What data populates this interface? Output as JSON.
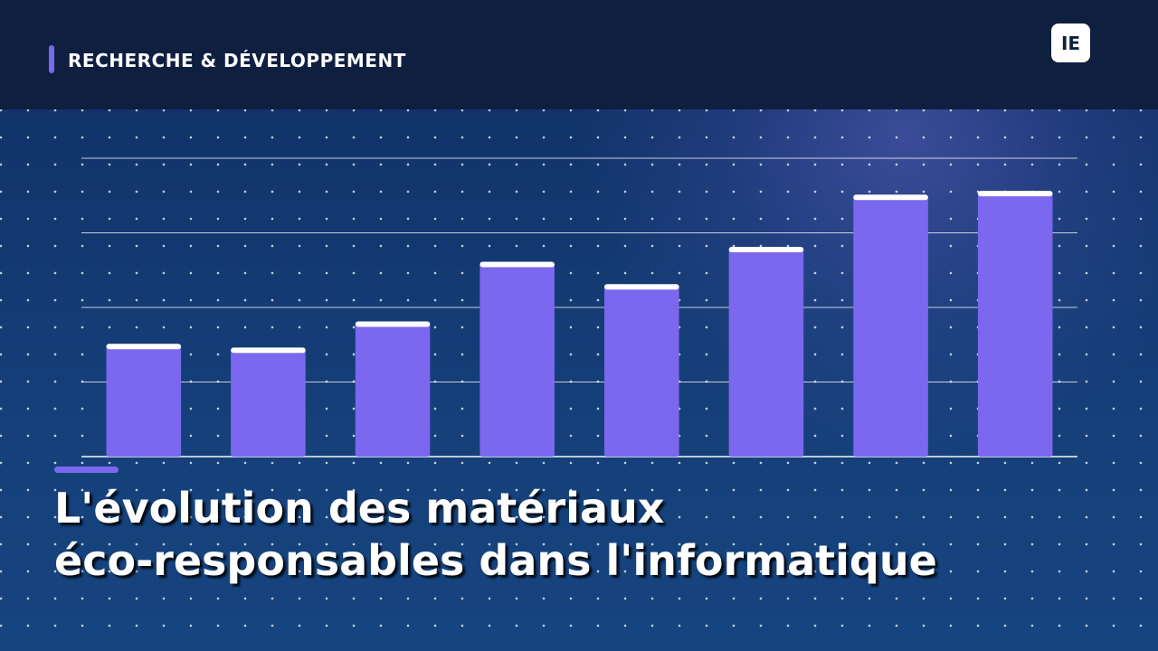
{
  "header": {
    "kicker": "RECHERCHE & DÉVELOPPEMENT",
    "logo_text": "IE"
  },
  "title": {
    "line1": "L'évolution des matériaux",
    "line2": "éco-responsables dans l'informatique"
  },
  "colors": {
    "header_bg": "#0f1f40",
    "accent": "#7b68ee",
    "bar": "#7b68ee",
    "bar_cap": "#ffffff",
    "grid": "#ffffff"
  },
  "chart_data": {
    "type": "bar",
    "values": [
      30,
      29,
      36,
      52,
      46,
      56,
      70,
      71
    ],
    "ylim": [
      0,
      80
    ],
    "grid": true,
    "gridline_count": 5
  }
}
